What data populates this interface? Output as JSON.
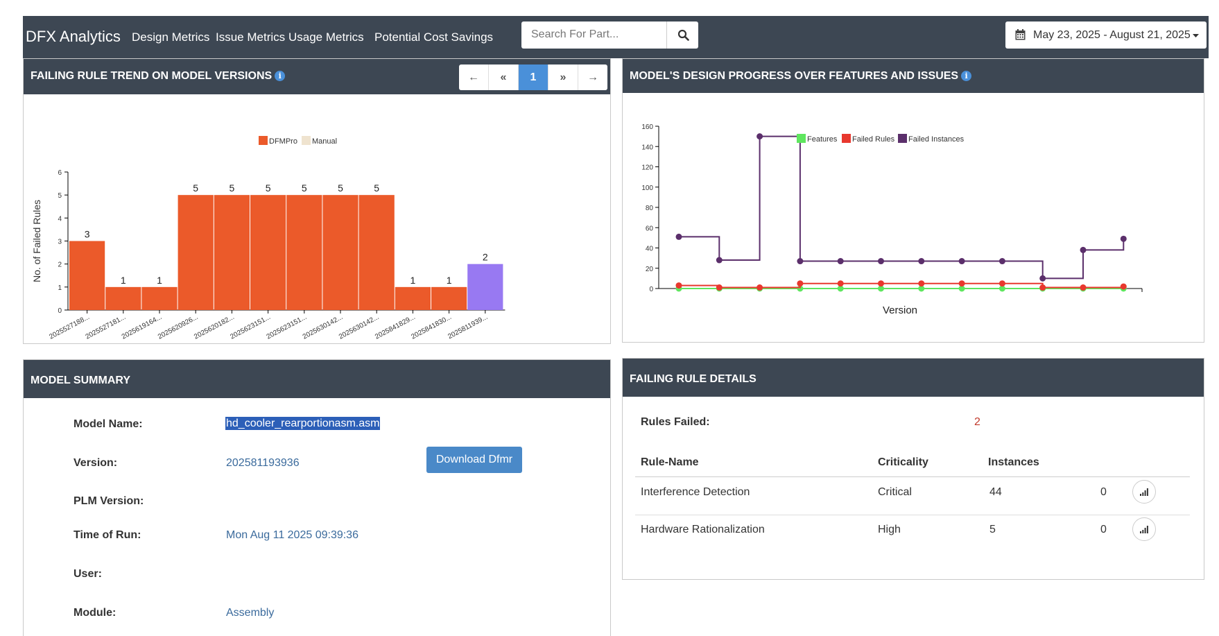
{
  "header": {
    "brand": "DFX Analytics",
    "nav": [
      "Design Metrics",
      "Issue Metrics",
      "Usage Metrics",
      "Potential Cost Savings"
    ],
    "search_placeholder": "Search For Part...",
    "date_range": "May 23, 2025 - August 21, 2025",
    "icons": {
      "search": "search-icon",
      "calendar": "calendar-icon",
      "caret": "caret-down-icon"
    }
  },
  "trend_panel": {
    "title": "FAILING RULE TREND ON MODEL VERSIONS",
    "pager": {
      "first": "←",
      "prev": "«",
      "page": "1",
      "next": "»",
      "last": "→"
    }
  },
  "progress_panel": {
    "title": "MODEL'S DESIGN PROGRESS OVER FEATURES AND ISSUES"
  },
  "summary_panel": {
    "title": "MODEL SUMMARY",
    "labels": {
      "model_name": "Model Name:",
      "version": "Version:",
      "plm_version": "PLM Version:",
      "time_of_run": "Time of Run:",
      "user": "User:",
      "module": "Module:"
    },
    "values": {
      "model_name": "hd_cooler_rearportionasm.asm",
      "version": "202581193936",
      "plm_version": "",
      "time_of_run": "Mon Aug 11 2025 09:39:36",
      "user": "",
      "module": "Assembly"
    },
    "download_label": "Download Dfmr"
  },
  "details_panel": {
    "title": "FAILING RULE DETAILS",
    "rules_failed_label": "Rules Failed:",
    "rules_failed_value": "2",
    "columns": [
      "Rule-Name",
      "Criticality",
      "Instances"
    ],
    "rows": [
      {
        "name": "Interference Detection",
        "criticality": "Critical",
        "instances": "44",
        "extra": "0"
      },
      {
        "name": "Hardware Rationalization",
        "criticality": "High",
        "instances": "5",
        "extra": "0"
      }
    ]
  },
  "chart_data": [
    {
      "type": "bar",
      "ylabel": "No. of Failed Rules",
      "ylim": [
        0,
        6
      ],
      "yticks": [
        "0",
        "1",
        "2",
        "3",
        "4",
        "5",
        "6"
      ],
      "legend": [
        "DFMPro",
        "Manual"
      ],
      "legend_placement": "top-center",
      "categories": [
        "2025527188...",
        "2025527181...",
        "2025619164...",
        "2025620926...",
        "2025620182...",
        "2025623151...",
        "2025623151...",
        "2025630142...",
        "2025630142...",
        "2025841829...",
        "2025841830...",
        "2025811939..."
      ],
      "values": [
        3,
        1,
        1,
        5,
        5,
        5,
        5,
        5,
        5,
        1,
        1,
        2
      ],
      "highlight_index": 11,
      "colors": {
        "DFMPro": "#eb5a2a",
        "Manual": "#efe3cf",
        "highlight": "#9879f2"
      }
    },
    {
      "type": "line",
      "xlabel": "Version",
      "ylim": [
        0,
        160
      ],
      "yticks": [
        "0",
        "20",
        "40",
        "60",
        "80",
        "100",
        "120",
        "140",
        "160"
      ],
      "legend": [
        "Features",
        "Failed Rules",
        "Failed Instances"
      ],
      "legend_placement": "top-center",
      "step": true,
      "series": [
        {
          "name": "Failed Instances",
          "color": "#5b2f6b",
          "values": [
            51,
            28,
            150,
            27,
            27,
            27,
            27,
            27,
            27,
            10,
            38,
            49
          ]
        },
        {
          "name": "Failed Rules",
          "color": "#e8382e",
          "values": [
            3,
            1,
            1,
            5,
            5,
            5,
            5,
            5,
            5,
            1,
            1,
            2
          ]
        },
        {
          "name": "Features",
          "color": "#5ee65e",
          "values": [
            0,
            0,
            0,
            0,
            0,
            0,
            0,
            0,
            0,
            0,
            0,
            0
          ]
        }
      ]
    }
  ]
}
